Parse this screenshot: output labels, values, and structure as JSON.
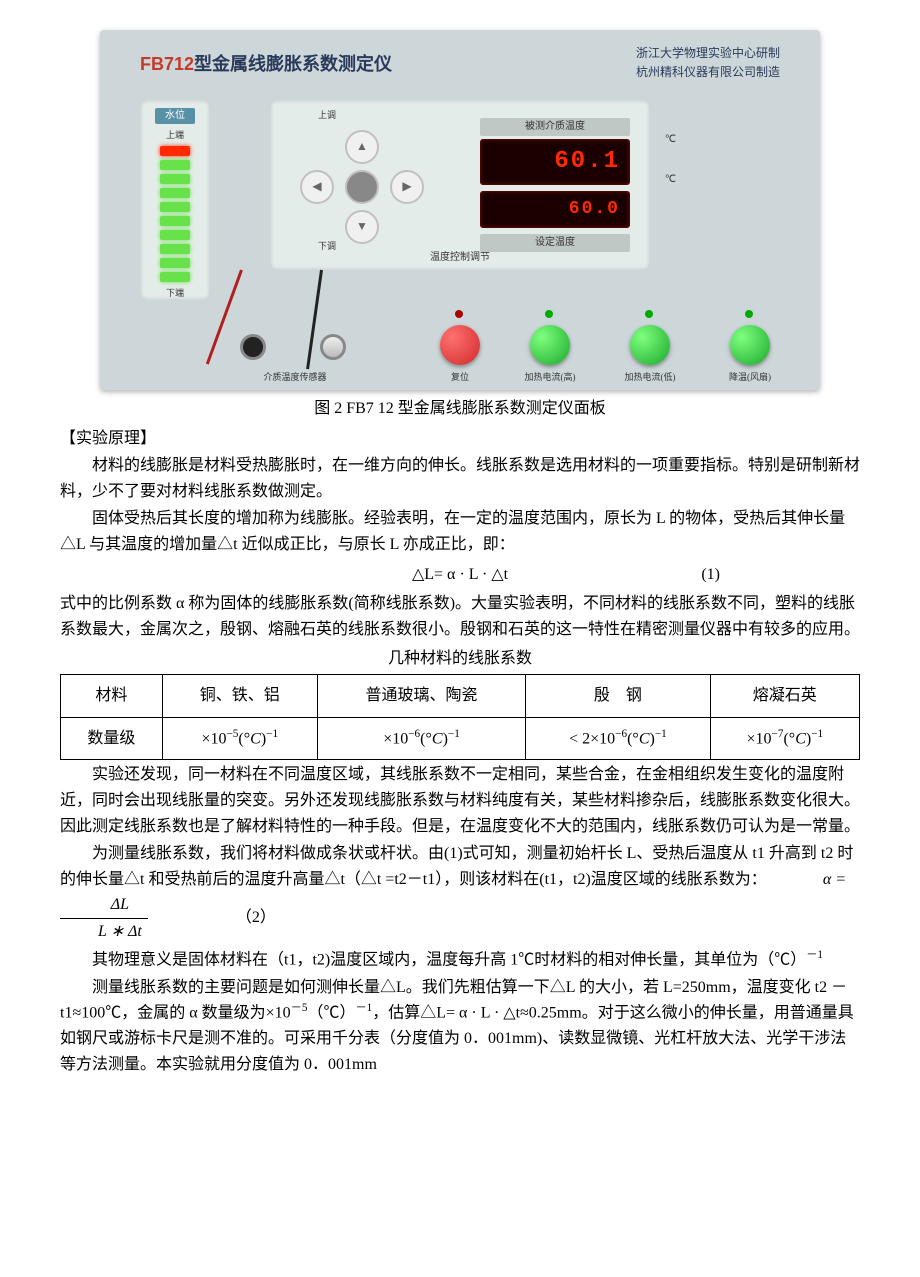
{
  "instrument": {
    "model": "FB712",
    "title_suffix": "型金属线膨胀系数测定仪",
    "maker_line1": "浙江大学物理实验中心研制",
    "maker_line2": "杭州精科仪器有限公司制造",
    "water_label": "水位",
    "level_up": "上端",
    "level_down": "下端",
    "display_label": "被测介质温度",
    "measured_temp": "60.1",
    "set_temp": "60.0",
    "set_label": "设定温度",
    "control_caption": "温度控制调节",
    "btn_up": "上调",
    "btn_down": "下调",
    "btn_reset": "复位",
    "btn_heat_hi": "加热电流(高)",
    "btn_heat_lo": "加热电流(低)",
    "btn_fan": "降温(风扇)",
    "sensor_label": "介质温度传感器",
    "led_colors": [
      "#ff2a00",
      "#67e24a",
      "#67e24a",
      "#67e24a",
      "#67e24a",
      "#67e24a",
      "#67e24a",
      "#67e24a",
      "#67e24a",
      "#67e24a"
    ],
    "button_colors": {
      "reset": "#d02a2a",
      "heat_hi": "#1aa82a",
      "heat_lo": "#1aa82a",
      "fan": "#1aa82a"
    }
  },
  "figure_caption": "图 2 FB7 12 型金属线膨胀系数测定仪面板",
  "heading_principle": "【实验原理】",
  "para1": "材料的线膨胀是材料受热膨胀时，在一维方向的伸长。线胀系数是选用材料的一项重要指标。特别是研制新材料，少不了要对材料线胀系数做测定。",
  "para2": "固体受热后其长度的增加称为线膨胀。经验表明，在一定的温度范围内，原长为 L 的物体，受热后其伸长量△L 与其温度的增加量△t 近似成正比，与原长 L 亦成正比，即：",
  "eq1": "△L= α · L · △t",
  "eq1_num": "(1)",
  "para3": "式中的比例系数 α 称为固体的线膨胀系数(简称线胀系数)。大量实验表明，不同材料的线胀系数不同，塑料的线胀系数最大，金属次之，殷钢、熔融石英的线胀系数很小。殷钢和石英的这一特性在精密测量仪器中有较多的应用。",
  "table_caption": "几种材料的线胀系数",
  "table": {
    "header_material": "材料",
    "col1": "铜、铁、铝",
    "col2": "普通玻璃、陶瓷",
    "col3": "殷　钢",
    "col4": "熔凝石英",
    "row_label": "数量级",
    "cell1_base": "×10",
    "cell1_exp": "−5",
    "cell1_unit_exp": "−1",
    "cell2_base": "×10",
    "cell2_exp": "−6",
    "cell2_unit_exp": "−1",
    "cell3_prefix": "< 2×10",
    "cell3_exp": "−6",
    "cell3_unit_exp": "−1",
    "cell4_base": "×10",
    "cell4_exp": "−7",
    "cell4_unit_exp": "−1"
  },
  "para4": "实验还发现，同一材料在不同温度区域，其线胀系数不一定相同，某些合金，在金相组织发生变化的温度附近，同时会出现线胀量的突变。另外还发现线膨胀系数与材料纯度有关，某些材料掺杂后，线膨胀系数变化很大。因此测定线胀系数也是了解材料特性的一种手段。但是，在温度变化不大的范围内，线胀系数仍可认为是一常量。",
  "para5_a": "为测量线胀系数，我们将材料做成条状或杆状。由(1)式可知，测量初始杆长 L、受热后温度从 t1 升高到 t2 时的伸长量△t 和受热前后的温度升高量△t（△t =t2－t1），则该材料在(t1，t2)温度区域的线胀系数为：",
  "eq2_lhs": "α =",
  "eq2_num": "ΔL",
  "eq2_den": "L ∗ Δt",
  "eq2_label": "（2）",
  "para6": "其物理意义是固体材料在（t1，t2)温度区域内，温度每升高 1℃时材料的相对伸长量，其单位为（℃）",
  "para6_exp": "－1",
  "para7": "测量线胀系数的主要问题是如何测伸长量△L。我们先粗估算一下△L 的大小，若 L=250mm，温度变化 t2 － t1≈100℃，金属的 α 数量级为×10",
  "para7_exp": "－5",
  "para7_b": "（℃）",
  "para7_exp2": "－1",
  "para7_c": "，估算△L= α · L · △t≈0.25mm。对于这么微小的伸长量，用普通量具如钢尺或游标卡尺是测不准的。可采用千分表（分度值为 0．001mm)、读数显微镜、光杠杆放大法、光学干涉法等方法测量。本实验就用分度值为 0．001mm"
}
